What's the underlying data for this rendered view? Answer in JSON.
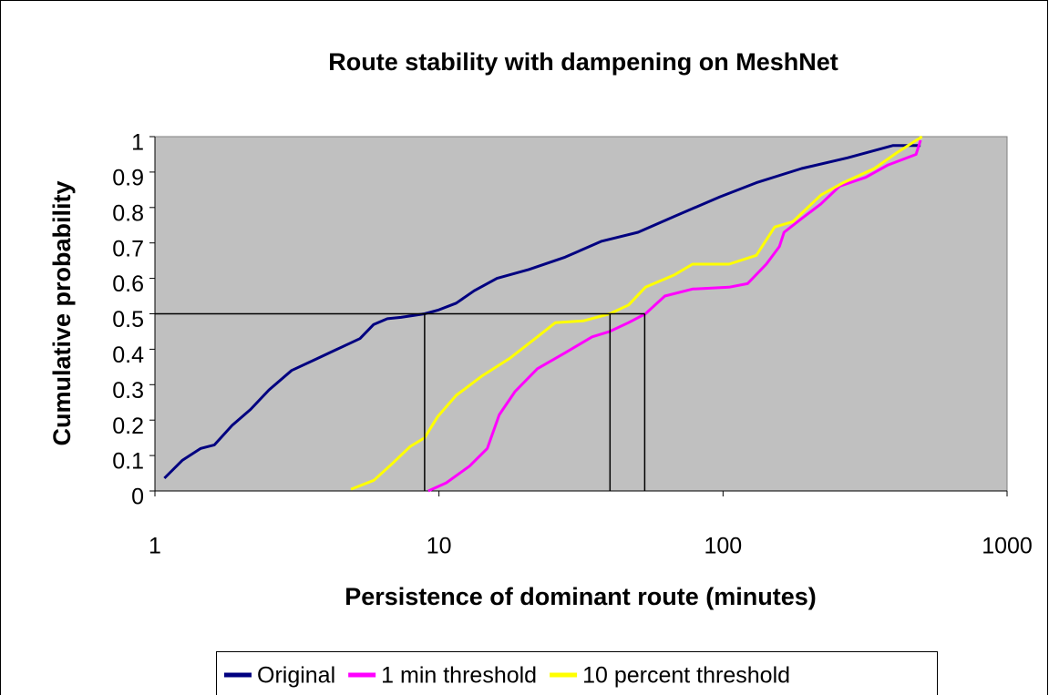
{
  "chart_data": {
    "type": "line",
    "title": "Route stability with dampening on MeshNet",
    "x_label": "Persistence of dominant route (minutes)",
    "y_label": "Cumulative probability",
    "x_scale": "log",
    "xlim": [
      1,
      1000
    ],
    "xticks": [
      1,
      10,
      100,
      1000
    ],
    "ylim": [
      0,
      1
    ],
    "yticks": [
      0,
      0.1,
      0.2,
      0.3,
      0.4,
      0.5,
      0.6,
      0.7,
      0.8,
      0.9,
      1
    ],
    "grid": false,
    "legend": "bottom",
    "plot_background": "#c0c0c0",
    "reference_y": 0.5,
    "reference_x": [
      8.9,
      40,
      53
    ],
    "series": [
      {
        "name": "Original",
        "color": "#000080",
        "x": [
          1.08,
          1.25,
          1.45,
          1.62,
          1.87,
          2.17,
          2.52,
          3.03,
          3.64,
          4.38,
          5.27,
          5.89,
          6.58,
          7.35,
          8.9,
          9.9,
          11.5,
          13.3,
          16.0,
          20.7,
          27.8,
          37.4,
          50.2,
          67.5,
          97.5,
          131,
          189,
          274,
          397,
          496
        ],
        "values": [
          0.036,
          0.087,
          0.12,
          0.13,
          0.185,
          0.23,
          0.285,
          0.34,
          0.37,
          0.4,
          0.43,
          0.47,
          0.486,
          0.49,
          0.5,
          0.51,
          0.53,
          0.565,
          0.6,
          0.625,
          0.66,
          0.705,
          0.73,
          0.775,
          0.83,
          0.87,
          0.91,
          0.94,
          0.975,
          0.975
        ]
      },
      {
        "name": "1 min threshold",
        "color": "#ff00ff",
        "x": [
          9.17,
          10.6,
          12.8,
          14.8,
          16.3,
          18.5,
          22.2,
          27.8,
          34.6,
          39.9,
          46.5,
          53.3,
          62.4,
          78.1,
          105,
          122,
          142,
          158,
          164,
          190,
          221,
          257,
          318,
          381,
          478,
          496
        ],
        "values": [
          0,
          0.023,
          0.07,
          0.12,
          0.215,
          0.28,
          0.345,
          0.39,
          0.435,
          0.45,
          0.475,
          0.5,
          0.55,
          0.57,
          0.575,
          0.585,
          0.64,
          0.69,
          0.73,
          0.77,
          0.81,
          0.86,
          0.885,
          0.92,
          0.95,
          0.99
        ]
      },
      {
        "name": "10 percent threshold",
        "color": "#ffff00",
        "x": [
          4.9,
          5.9,
          6.8,
          7.9,
          8.9,
          9.9,
          11.5,
          14.2,
          17.8,
          22.2,
          25.7,
          32.2,
          39.9,
          46.5,
          53.3,
          67.5,
          78.1,
          105,
          131,
          152,
          176,
          221,
          265,
          341,
          410,
          502
        ],
        "values": [
          0.005,
          0.03,
          0.075,
          0.125,
          0.15,
          0.21,
          0.27,
          0.325,
          0.375,
          0.435,
          0.475,
          0.48,
          0.5,
          0.525,
          0.575,
          0.61,
          0.64,
          0.64,
          0.665,
          0.745,
          0.76,
          0.835,
          0.87,
          0.91,
          0.955,
          1.0
        ]
      }
    ]
  }
}
